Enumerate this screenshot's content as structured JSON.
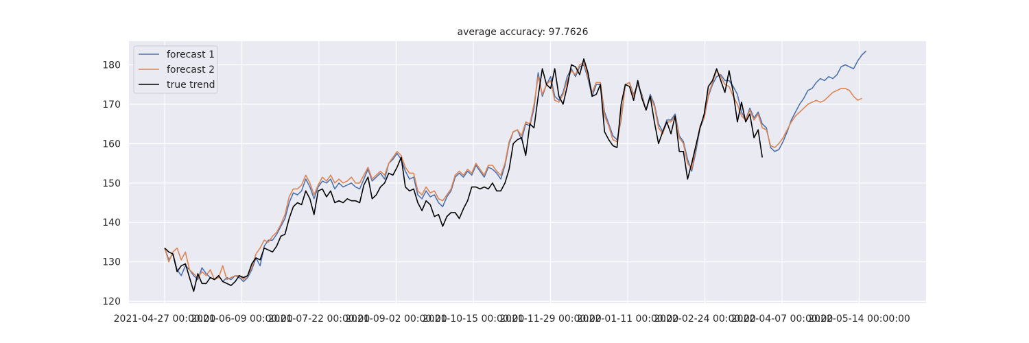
{
  "chart_data": {
    "type": "line",
    "title": "average accuracy: 97.7626",
    "xlabel": "",
    "ylabel": "",
    "x_tick_labels": [
      "2021-04-27 00:00:00",
      "2021-06-09 00:00:00",
      "2021-07-22 00:00:00",
      "2021-09-02 00:00:00",
      "2021-10-15 00:00:00",
      "2021-11-29 00:00:00",
      "2022-01-11 00:00:00",
      "2022-02-24 00:00:00",
      "2022-04-07 00:00:00",
      "2022-05-14 00:00:00"
    ],
    "y_ticks": [
      120,
      130,
      140,
      150,
      160,
      170,
      180
    ],
    "ylim": [
      119.5,
      186
    ],
    "grid": true,
    "legend_position": "top-left",
    "series": [
      {
        "name": "forecast 1",
        "color": "#4c72b0",
        "values": [
          133.5,
          130.5,
          132.0,
          128.0,
          126.5,
          129.0,
          128.0,
          126.5,
          125.5,
          128.5,
          127.0,
          126.0,
          125.5,
          126.5,
          125.0,
          126.0,
          125.5,
          126.5,
          126.0,
          125.0,
          126.0,
          128.0,
          131.0,
          129.0,
          134.0,
          135.5,
          135.5,
          137.0,
          139.0,
          141.0,
          145.0,
          147.5,
          147.0,
          148.0,
          151.0,
          149.0,
          146.0,
          149.0,
          150.5,
          150.0,
          151.0,
          148.5,
          150.0,
          149.0,
          149.5,
          150.0,
          149.0,
          148.5,
          151.0,
          153.5,
          150.5,
          151.5,
          152.5,
          151.0,
          155.0,
          156.0,
          157.5,
          156.0,
          153.0,
          151.0,
          151.5,
          147.0,
          146.0,
          148.0,
          146.5,
          147.0,
          145.0,
          144.0,
          146.5,
          148.0,
          151.5,
          152.5,
          151.5,
          153.0,
          152.0,
          154.5,
          153.0,
          151.5,
          154.0,
          153.5,
          152.5,
          151.0,
          154.5,
          160.0,
          163.0,
          163.5,
          161.0,
          165.0,
          164.5,
          169.0,
          178.0,
          172.0,
          175.0,
          177.0,
          172.0,
          171.0,
          173.0,
          177.0,
          179.0,
          177.0,
          179.5,
          180.0,
          176.5,
          172.0,
          175.0,
          175.0,
          168.0,
          165.0,
          162.0,
          161.0,
          166.0,
          175.0,
          175.5,
          172.5,
          175.0,
          172.5,
          168.5,
          172.5,
          170.0,
          165.0,
          163.0,
          166.0,
          166.0,
          167.5,
          162.0,
          160.5,
          156.0,
          153.0,
          158.0,
          164.0,
          166.5,
          172.0,
          175.0,
          177.0,
          177.5,
          176.0,
          176.0,
          174.5,
          172.5,
          168.0,
          166.0,
          169.0,
          166.5,
          168.0,
          165.0,
          164.0,
          159.0,
          158.0,
          158.5,
          160.5,
          163.0,
          166.0,
          168.0,
          170.0,
          171.5,
          173.5,
          174.0,
          175.5,
          176.5,
          176.0,
          177.0,
          176.5,
          177.5,
          179.5,
          180.0,
          179.5,
          179.0,
          181.0,
          182.5,
          183.5
        ]
      },
      {
        "name": "forecast 2",
        "color": "#dd8452",
        "values": [
          133.5,
          130.0,
          132.5,
          133.5,
          130.5,
          132.5,
          128.0,
          127.0,
          126.0,
          127.5,
          126.5,
          128.0,
          125.5,
          126.0,
          129.0,
          125.5,
          126.0,
          126.5,
          126.5,
          125.5,
          126.5,
          128.5,
          132.0,
          133.5,
          135.5,
          135.0,
          136.5,
          137.5,
          139.5,
          142.0,
          146.5,
          148.5,
          148.5,
          149.5,
          152.0,
          150.0,
          147.0,
          149.5,
          151.5,
          150.5,
          152.0,
          150.0,
          151.0,
          150.0,
          150.5,
          151.5,
          150.0,
          150.0,
          152.0,
          154.0,
          151.0,
          152.0,
          153.0,
          152.0,
          155.0,
          156.5,
          158.0,
          157.0,
          154.0,
          152.5,
          152.5,
          148.0,
          147.0,
          149.0,
          147.5,
          148.0,
          146.0,
          145.5,
          147.0,
          148.5,
          152.0,
          153.0,
          152.0,
          153.5,
          152.5,
          155.0,
          153.5,
          152.0,
          154.5,
          154.5,
          153.0,
          152.0,
          155.0,
          160.5,
          163.0,
          163.5,
          162.0,
          165.5,
          165.0,
          170.0,
          177.0,
          172.5,
          175.0,
          176.0,
          171.0,
          170.5,
          172.5,
          176.0,
          178.5,
          177.5,
          180.0,
          180.5,
          177.0,
          173.0,
          175.5,
          175.5,
          167.0,
          164.5,
          161.0,
          160.5,
          166.5,
          175.0,
          175.5,
          172.0,
          175.5,
          172.0,
          168.5,
          172.0,
          169.5,
          164.0,
          162.5,
          165.5,
          165.5,
          167.0,
          161.5,
          160.0,
          155.0,
          153.5,
          159.0,
          164.5,
          166.5,
          172.5,
          175.5,
          178.5,
          177.0,
          175.0,
          174.5,
          172.0,
          170.0,
          167.0,
          166.0,
          168.5,
          166.0,
          167.5,
          164.0,
          163.5,
          159.5,
          159.0,
          160.0,
          161.5,
          163.5,
          165.5,
          167.0,
          168.0,
          169.0,
          170.0,
          170.5,
          171.0,
          170.5,
          171.0,
          172.0,
          173.0,
          173.5,
          174.0,
          174.0,
          173.5,
          172.0,
          171.0,
          171.5
        ]
      },
      {
        "name": "true trend",
        "color": "#000000",
        "values": [
          133.5,
          132.5,
          132.0,
          127.5,
          129.0,
          129.5,
          126.0,
          122.5,
          127.0,
          124.5,
          124.5,
          126.0,
          125.5,
          126.5,
          125.0,
          124.5,
          124.0,
          125.0,
          126.5,
          126.0,
          126.5,
          129.5,
          131.0,
          130.5,
          133.5,
          133.0,
          132.5,
          134.0,
          136.5,
          137.0,
          141.0,
          144.0,
          145.0,
          144.5,
          148.0,
          146.0,
          142.0,
          148.0,
          148.5,
          146.5,
          148.0,
          145.0,
          145.5,
          145.0,
          146.0,
          145.5,
          145.5,
          145.0,
          149.5,
          151.5,
          146.0,
          147.0,
          149.0,
          150.0,
          152.5,
          152.0,
          154.0,
          156.5,
          149.0,
          148.0,
          148.5,
          145.0,
          143.0,
          145.5,
          144.5,
          141.5,
          142.0,
          139.0,
          141.5,
          142.5,
          142.5,
          141.0,
          143.5,
          145.5,
          149.0,
          149.0,
          148.5,
          149.0,
          148.5,
          150.0,
          148.0,
          148.0,
          150.0,
          153.5,
          160.0,
          161.0,
          161.5,
          157.0,
          165.0,
          164.0,
          172.0,
          179.0,
          175.0,
          174.0,
          179.0,
          172.0,
          170.0,
          174.5,
          180.0,
          179.5,
          177.5,
          181.5,
          178.0,
          172.0,
          172.5,
          175.0,
          163.0,
          161.0,
          159.5,
          159.0,
          170.0,
          175.0,
          174.5,
          171.0,
          176.0,
          171.5,
          168.5,
          172.0,
          165.5,
          160.0,
          163.0,
          165.5,
          162.5,
          167.0,
          158.0,
          158.0,
          151.0,
          155.0,
          159.5,
          164.0,
          167.5,
          174.5,
          176.0,
          179.0,
          176.0,
          173.0,
          178.5,
          173.0,
          165.5,
          170.5,
          165.5,
          167.5,
          161.5,
          163.5,
          156.5
        ]
      }
    ]
  }
}
